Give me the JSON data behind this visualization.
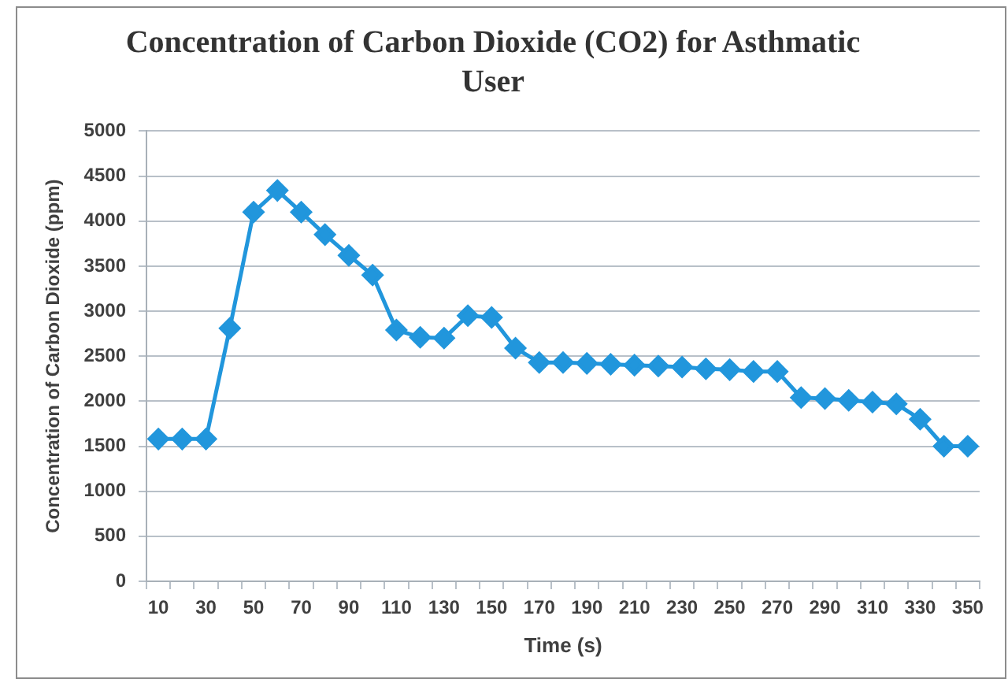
{
  "chart_data": {
    "type": "line",
    "title": "Concentration of Carbon Dioxide (CO2) for Asthmatic User",
    "xlabel": "Time (s)",
    "ylabel": "Concentration of Carbon Dioxide (ppm)",
    "categories": [
      "10",
      null,
      "30",
      null,
      "50",
      null,
      "70",
      null,
      "90",
      null,
      "110",
      null,
      "130",
      null,
      "150",
      null,
      "170",
      null,
      "190",
      null,
      "210",
      null,
      "230",
      null,
      "250",
      null,
      "270",
      null,
      "290",
      null,
      "310",
      null,
      "330",
      null,
      "350"
    ],
    "series": [
      {
        "color": "#2196dc",
        "values": [
          1580,
          1580,
          1580,
          2810,
          4100,
          4340,
          4100,
          3850,
          3620,
          3400,
          2790,
          2710,
          2700,
          2950,
          2930,
          2590,
          2430,
          2430,
          2420,
          2410,
          2400,
          2390,
          2380,
          2360,
          2350,
          2330,
          2330,
          2040,
          2030,
          2010,
          1990,
          1970,
          1800,
          1500,
          1500
        ]
      }
    ],
    "ylim": [
      0,
      5000
    ],
    "yticks": [
      0,
      500,
      1000,
      1500,
      2000,
      2500,
      3000,
      3500,
      4000,
      4500,
      5000
    ],
    "grid": "y",
    "marker": "diamond",
    "line_style": "solid"
  }
}
